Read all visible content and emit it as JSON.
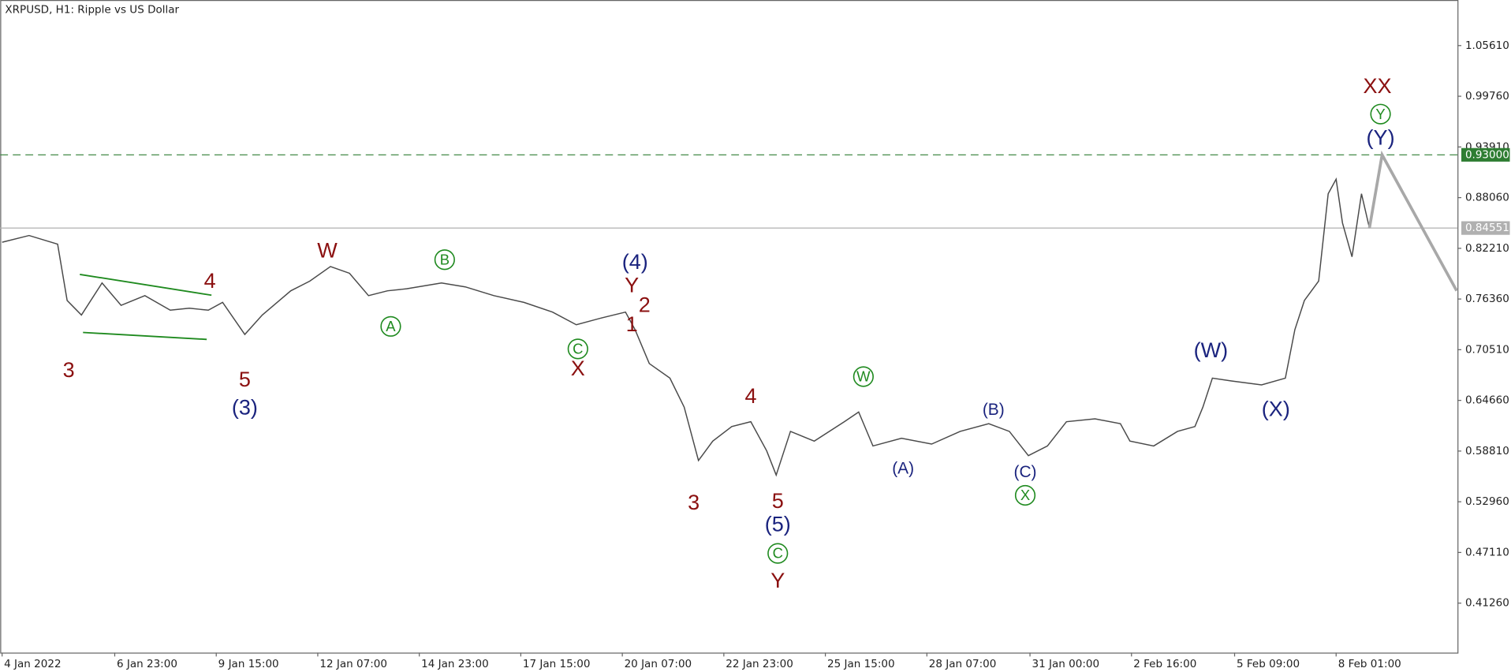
{
  "chart_data": {
    "type": "line",
    "title": "XRPUSD, H1:  Ripple vs US Dollar",
    "x": [
      0,
      17,
      35,
      41,
      50,
      63,
      75,
      90,
      106,
      118,
      130,
      139,
      153,
      164,
      182,
      194,
      207,
      219,
      231,
      243,
      255,
      277,
      292,
      310,
      329,
      347,
      362,
      378,
      393,
      399,
      408,
      421,
      430,
      439,
      448,
      460,
      472,
      482,
      488,
      497,
      512,
      531,
      540,
      549,
      567,
      586,
      604,
      622,
      635,
      647,
      659,
      671,
      689,
      705,
      711,
      726,
      741,
      752,
      757,
      763,
      775,
      794,
      809,
      815,
      821,
      830,
      836,
      841,
      845,
      851,
      857,
      862
    ],
    "values": [
      0.8291,
      0.8369,
      0.8269,
      0.7619,
      0.7451,
      0.7821,
      0.7563,
      0.7675,
      0.7507,
      0.753,
      0.7507,
      0.7597,
      0.7227,
      0.7451,
      0.7731,
      0.7843,
      0.8011,
      0.7933,
      0.7675,
      0.7731,
      0.7754,
      0.7821,
      0.7776,
      0.7675,
      0.7597,
      0.7485,
      0.7339,
      0.7418,
      0.7485,
      0.7283,
      0.6891,
      0.6723,
      0.6388,
      0.5772,
      0.5996,
      0.6164,
      0.622,
      0.5884,
      0.5604,
      0.6108,
      0.5996,
      0.622,
      0.6332,
      0.594,
      0.6029,
      0.5962,
      0.6108,
      0.6197,
      0.6108,
      0.5828,
      0.594,
      0.622,
      0.6253,
      0.6197,
      0.5996,
      0.594,
      0.6108,
      0.6164,
      0.6388,
      0.6723,
      0.669,
      0.6645,
      0.6723,
      0.7283,
      0.7619,
      0.7843,
      0.8851,
      0.9019,
      0.8515,
      0.8123,
      0.8851,
      0.8455
    ],
    "color": "#4a4a4a",
    "xlim": [
      -1.2,
      917.5
    ],
    "xticks": [
      {
        "value": 0,
        "label": "4 Jan 2022"
      },
      {
        "value": 71,
        "label": "6 Jan 23:00"
      },
      {
        "value": 135,
        "label": "9 Jan 15:00"
      },
      {
        "value": 199,
        "label": "12 Jan 07:00"
      },
      {
        "value": 263,
        "label": "14 Jan 23:00"
      },
      {
        "value": 327,
        "label": "17 Jan 15:00"
      },
      {
        "value": 391,
        "label": "20 Jan 07:00"
      },
      {
        "value": 455,
        "label": "22 Jan 23:00"
      },
      {
        "value": 519,
        "label": "25 Jan 15:00"
      },
      {
        "value": 583,
        "label": "28 Jan 07:00"
      },
      {
        "value": 648,
        "label": "31 Jan 00:00"
      },
      {
        "value": 712,
        "label": "2 Feb 16:00"
      },
      {
        "value": 777,
        "label": "5 Feb 09:00"
      },
      {
        "value": 841,
        "label": "8 Feb 01:00"
      }
    ],
    "ylim": [
      0.3555,
      1.1087
    ],
    "yticks": [
      {
        "value": 1.0561,
        "label": "1.05610"
      },
      {
        "value": 0.9976,
        "label": "0.99760"
      },
      {
        "value": 0.9391,
        "label": "0.93910"
      },
      {
        "value": 0.8806,
        "label": "0.88060"
      },
      {
        "value": 0.8221,
        "label": "0.82210"
      },
      {
        "value": 0.7636,
        "label": "0.76360"
      },
      {
        "value": 0.7051,
        "label": "0.70510"
      },
      {
        "value": 0.6466,
        "label": "0.64660"
      },
      {
        "value": 0.5881,
        "label": "0.58810"
      },
      {
        "value": 0.5296,
        "label": "0.52960"
      },
      {
        "value": 0.4711,
        "label": "0.47110"
      },
      {
        "value": 0.4126,
        "label": "0.41260"
      }
    ],
    "levels": [
      {
        "value": 0.93,
        "label": "0.93000",
        "color": "#2e7d32",
        "style": "dashed"
      },
      {
        "value": 0.84551,
        "label": "0.84551",
        "color": "#b0b0b0",
        "style": "solid"
      }
    ],
    "projection": {
      "x": [
        862,
        870,
        917
      ],
      "values": [
        0.8455,
        0.93,
        0.7731
      ],
      "color": "#a8a8a8"
    },
    "trendline_color": "#1f8a1f",
    "trendlines": [
      {
        "x": [
          49,
          132
        ],
        "values": [
          0.792,
          0.768
        ]
      },
      {
        "x": [
          51,
          129
        ],
        "values": [
          0.725,
          0.717
        ]
      }
    ],
    "annotations": [
      {
        "text": "3",
        "x": 42,
        "y": 0.68,
        "color": "#8b1010"
      },
      {
        "text": "5",
        "x": 153,
        "y": 0.669,
        "color": "#8b1010"
      },
      {
        "text": "(3)",
        "x": 153,
        "y": 0.637,
        "color": "#1a237e"
      },
      {
        "text": "4",
        "x": 131,
        "y": 0.783,
        "color": "#8b1010"
      },
      {
        "text": "W",
        "x": 205,
        "y": 0.818,
        "color": "#8b1010"
      },
      {
        "text": "A",
        "x": 245,
        "y": 0.732,
        "color": "#1f8a1f",
        "circled": true
      },
      {
        "text": "B",
        "x": 279,
        "y": 0.809,
        "color": "#1f8a1f",
        "circled": true
      },
      {
        "text": "C",
        "x": 363,
        "y": 0.706,
        "color": "#1f8a1f",
        "circled": true
      },
      {
        "text": "X",
        "x": 363,
        "y": 0.682,
        "color": "#8b1010"
      },
      {
        "text": "(4)",
        "x": 399,
        "y": 0.805,
        "color": "#1a237e"
      },
      {
        "text": "Y",
        "x": 397,
        "y": 0.778,
        "color": "#8b1010"
      },
      {
        "text": "2",
        "x": 405,
        "y": 0.755,
        "color": "#8b1010"
      },
      {
        "text": "1",
        "x": 397,
        "y": 0.733,
        "color": "#8b1010"
      },
      {
        "text": "3",
        "x": 436,
        "y": 0.527,
        "color": "#8b1010"
      },
      {
        "text": "4",
        "x": 472,
        "y": 0.65,
        "color": "#8b1010"
      },
      {
        "text": "5",
        "x": 489,
        "y": 0.529,
        "color": "#8b1010"
      },
      {
        "text": "(5)",
        "x": 489,
        "y": 0.502,
        "color": "#1a237e"
      },
      {
        "text": "C",
        "x": 489,
        "y": 0.47,
        "color": "#1f8a1f",
        "circled": true
      },
      {
        "text": "Y",
        "x": 489,
        "y": 0.437,
        "color": "#8b1010"
      },
      {
        "text": "W",
        "x": 543,
        "y": 0.674,
        "color": "#1f8a1f",
        "circled": true
      },
      {
        "text": "(A)",
        "x": 568,
        "y": 0.567,
        "color": "#1a237e",
        "small": true
      },
      {
        "text": "(B)",
        "x": 625,
        "y": 0.635,
        "color": "#1a237e",
        "small": true
      },
      {
        "text": "(C)",
        "x": 645,
        "y": 0.563,
        "color": "#1a237e",
        "small": true
      },
      {
        "text": "X",
        "x": 645,
        "y": 0.537,
        "color": "#1f8a1f",
        "circled": true
      },
      {
        "text": "(W)",
        "x": 762,
        "y": 0.703,
        "color": "#1a237e"
      },
      {
        "text": "(X)",
        "x": 803,
        "y": 0.635,
        "color": "#1a237e"
      },
      {
        "text": "XX",
        "x": 867,
        "y": 1.008,
        "color": "#8b1010"
      },
      {
        "text": "Y",
        "x": 869,
        "y": 0.977,
        "color": "#1f8a1f",
        "circled": true
      },
      {
        "text": "(Y)",
        "x": 869,
        "y": 0.948,
        "color": "#1a237e"
      }
    ]
  }
}
